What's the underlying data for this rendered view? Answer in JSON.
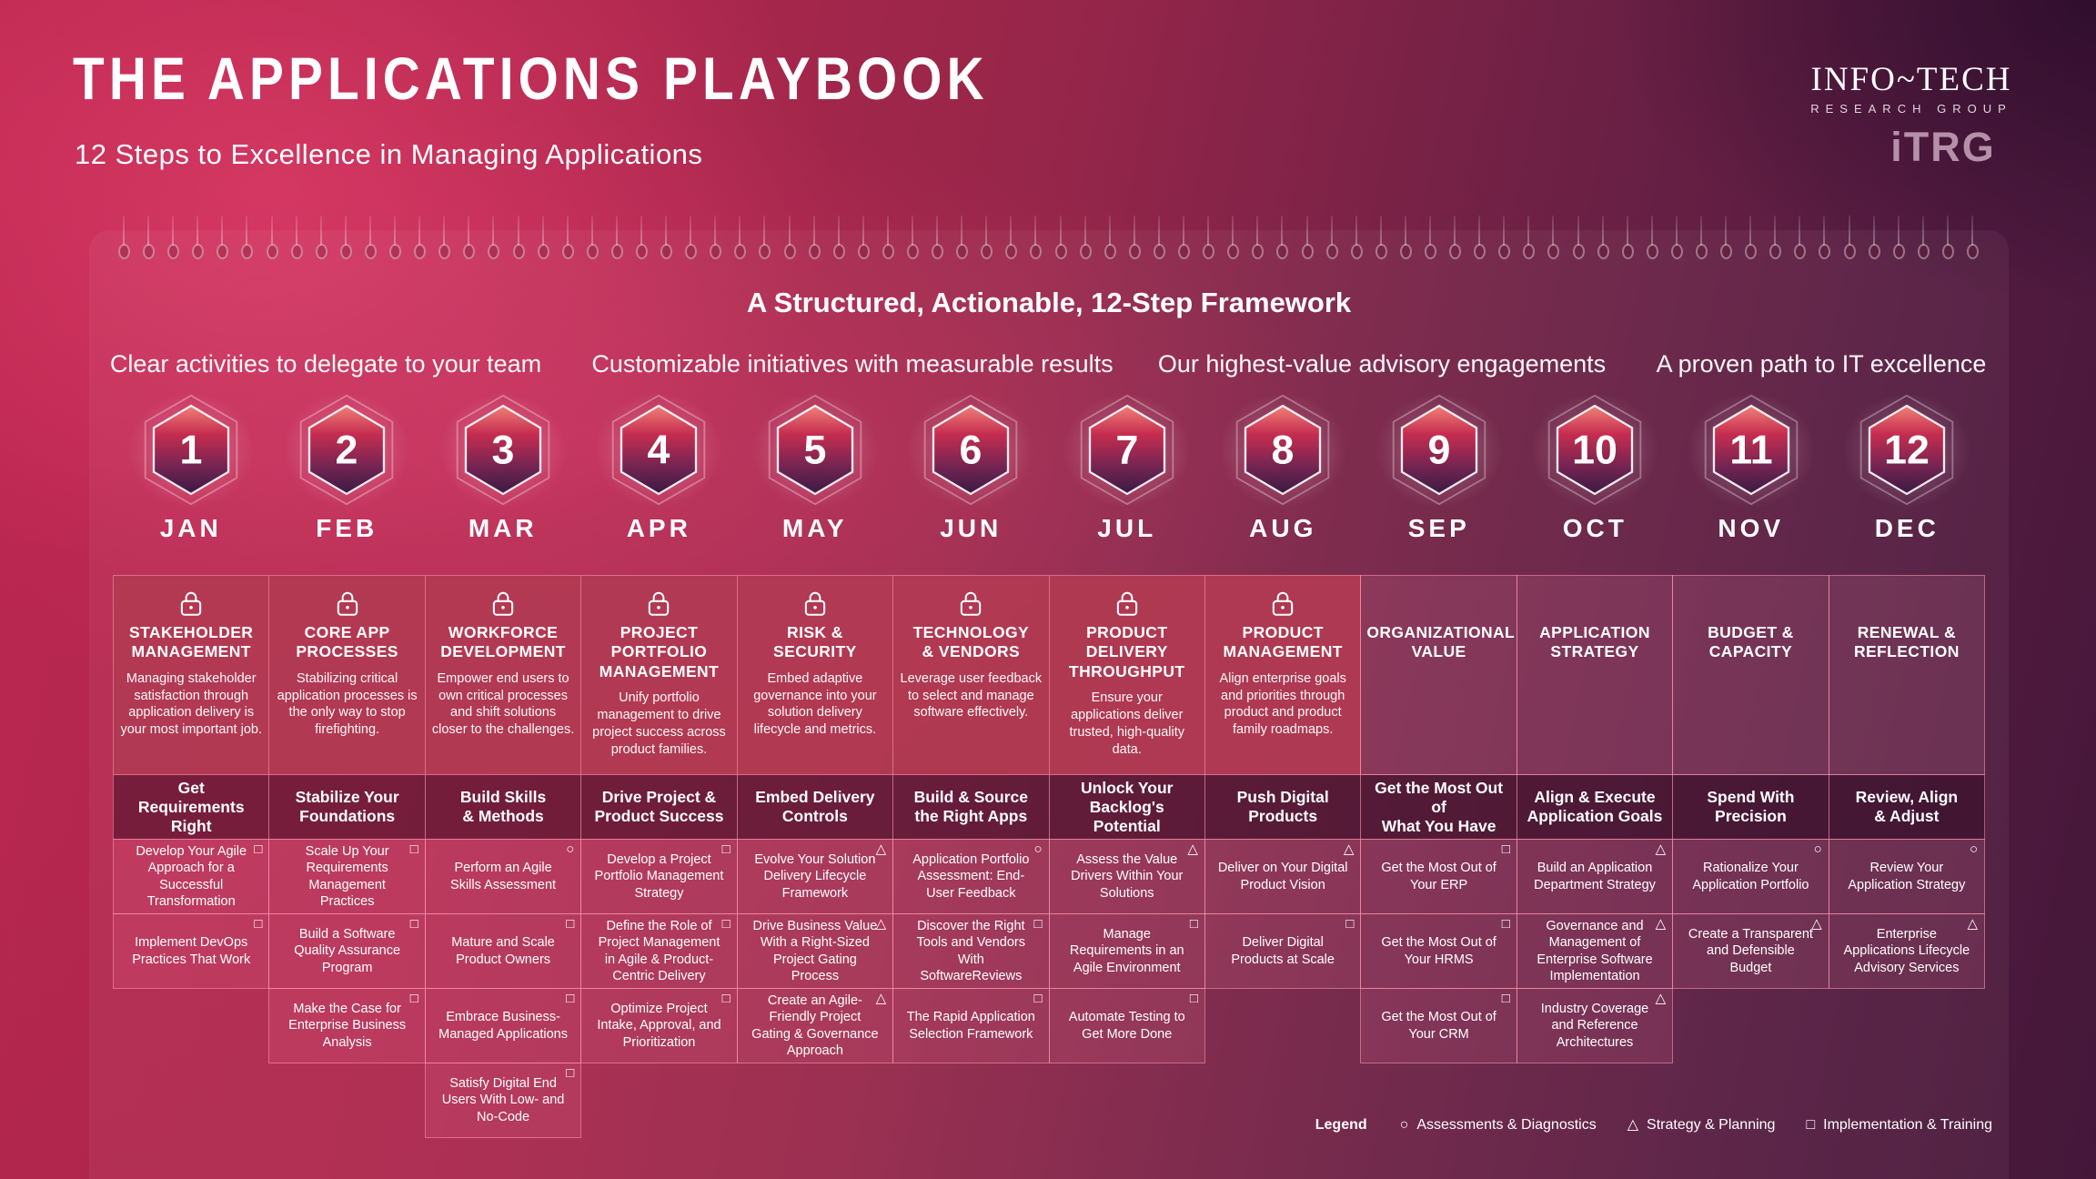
{
  "header": {
    "title": "THE APPLICATIONS PLAYBOOK",
    "subtitle": "12 Steps to Excellence in Managing Applications"
  },
  "logo": {
    "name": "INFO~TECH",
    "sub": "RESEARCH GROUP",
    "acronym": "iTRG"
  },
  "panel": {
    "heading": "A Structured, Actionable, 12-Step Framework",
    "group_headers": [
      "Clear activities to delegate to your team",
      "Customizable initiatives with measurable results",
      "Our highest-value advisory engagements",
      "A proven path to IT excellence"
    ]
  },
  "columns": [
    {
      "num": "1",
      "month": "JAN",
      "locked": true,
      "category": "STAKEHOLDER\nMANAGEMENT",
      "description": "Managing stakeholder satisfaction through application delivery is your most important job.",
      "subtitle": "Get Requirements\nRight",
      "activities": [
        {
          "label": "Develop Your Agile Approach for a Successful Transformation",
          "type": "square"
        },
        {
          "label": "Implement DevOps Practices That Work",
          "type": "square"
        }
      ]
    },
    {
      "num": "2",
      "month": "FEB",
      "locked": true,
      "category": "CORE APP\nPROCESSES",
      "description": "Stabilizing critical application processes is the only way to stop firefighting.",
      "subtitle": "Stabilize Your\nFoundations",
      "activities": [
        {
          "label": "Scale Up Your Requirements Management Practices",
          "type": "square"
        },
        {
          "label": "Build a Software Quality Assurance Program",
          "type": "square"
        },
        {
          "label": "Make the Case for Enterprise Business Analysis",
          "type": "square"
        }
      ]
    },
    {
      "num": "3",
      "month": "MAR",
      "locked": true,
      "category": "WORKFORCE\nDEVELOPMENT",
      "description": "Empower end users to own critical processes and shift solutions closer to the challenges.",
      "subtitle": "Build Skills\n& Methods",
      "activities": [
        {
          "label": "Perform an Agile Skills Assessment",
          "type": "circle"
        },
        {
          "label": "Mature and Scale Product Owners",
          "type": "square"
        },
        {
          "label": "Embrace Business-Managed Applications",
          "type": "square"
        },
        {
          "label": "Satisfy Digital End Users With Low- and No-Code",
          "type": "square"
        }
      ]
    },
    {
      "num": "4",
      "month": "APR",
      "locked": true,
      "category": "PROJECT\nPORTFOLIO\nMANAGEMENT",
      "description": "Unify portfolio management to drive project success across product families.",
      "subtitle": "Drive Project &\nProduct Success",
      "activities": [
        {
          "label": "Develop a Project Portfolio Management Strategy",
          "type": "square"
        },
        {
          "label": "Define the Role of Project Management in Agile & Product-Centric Delivery",
          "type": "square"
        },
        {
          "label": "Optimize Project Intake, Approval, and Prioritization",
          "type": "square"
        }
      ]
    },
    {
      "num": "5",
      "month": "MAY",
      "locked": true,
      "category": "RISK &\nSECURITY",
      "description": "Embed adaptive governance into your solution delivery lifecycle and metrics.",
      "subtitle": "Embed Delivery\nControls",
      "activities": [
        {
          "label": "Evolve Your Solution Delivery Lifecycle Framework",
          "type": "triangle"
        },
        {
          "label": "Drive Business Value With a Right-Sized Project Gating Process",
          "type": "triangle"
        },
        {
          "label": "Create an Agile-Friendly Project Gating & Governance Approach",
          "type": "triangle"
        }
      ]
    },
    {
      "num": "6",
      "month": "JUN",
      "locked": true,
      "category": "TECHNOLOGY\n& VENDORS",
      "description": "Leverage user feedback to select and manage software effectively.",
      "subtitle": "Build & Source\nthe Right Apps",
      "activities": [
        {
          "label": "Application Portfolio Assessment: End-User Feedback",
          "type": "circle"
        },
        {
          "label": "Discover the Right Tools and Vendors With SoftwareReviews",
          "type": "square"
        },
        {
          "label": "The Rapid Application Selection Framework",
          "type": "square"
        }
      ]
    },
    {
      "num": "7",
      "month": "JUL",
      "locked": true,
      "category": "PRODUCT\nDELIVERY\nTHROUGHPUT",
      "description": "Ensure your applications deliver trusted, high-quality data.",
      "subtitle": "Unlock Your\nBacklog's Potential",
      "activities": [
        {
          "label": "Assess the Value Drivers Within Your Solutions",
          "type": "triangle"
        },
        {
          "label": "Manage Requirements in an Agile Environment",
          "type": "square"
        },
        {
          "label": "Automate Testing to Get More Done",
          "type": "square"
        }
      ]
    },
    {
      "num": "8",
      "month": "AUG",
      "locked": true,
      "category": "PRODUCT\nMANAGEMENT",
      "description": "Align enterprise goals and priorities through product and product family roadmaps.",
      "subtitle": "Push Digital Products",
      "activities": [
        {
          "label": "Deliver on Your Digital Product Vision",
          "type": "triangle"
        },
        {
          "label": "Deliver Digital Products at Scale",
          "type": "square"
        }
      ]
    },
    {
      "num": "9",
      "month": "SEP",
      "locked": false,
      "category": "ORGANIZATIONAL\nVALUE",
      "description": "",
      "subtitle": "Get the Most Out of\nWhat You Have",
      "activities": [
        {
          "label": "Get the Most Out of Your ERP",
          "type": "square"
        },
        {
          "label": "Get the Most Out of Your HRMS",
          "type": "square"
        },
        {
          "label": "Get the Most Out of Your CRM",
          "type": "square"
        }
      ]
    },
    {
      "num": "10",
      "month": "OCT",
      "locked": false,
      "category": "APPLICATION\nSTRATEGY",
      "description": "",
      "subtitle": "Align & Execute\nApplication Goals",
      "activities": [
        {
          "label": "Build an Application Department Strategy",
          "type": "triangle"
        },
        {
          "label": "Governance and Management of Enterprise Software Implementation",
          "type": "triangle"
        },
        {
          "label": "Industry Coverage and Reference Architectures",
          "type": "triangle"
        }
      ]
    },
    {
      "num": "11",
      "month": "NOV",
      "locked": false,
      "category": "BUDGET &\nCAPACITY",
      "description": "",
      "subtitle": "Spend With\nPrecision",
      "activities": [
        {
          "label": "Rationalize Your Application Portfolio",
          "type": "circle"
        },
        {
          "label": "Create a Transparent and Defensible Budget",
          "type": "triangle"
        }
      ]
    },
    {
      "num": "12",
      "month": "DEC",
      "locked": false,
      "category": "RENEWAL &\nREFLECTION",
      "description": "",
      "subtitle": "Review, Align\n& Adjust",
      "activities": [
        {
          "label": "Review Your Application Strategy",
          "type": "circle"
        },
        {
          "label": "Enterprise Applications Lifecycle Advisory Services",
          "type": "triangle"
        }
      ]
    }
  ],
  "legend": {
    "label": "Legend",
    "items": [
      {
        "symbol": "circle",
        "label": "Assessments & Diagnostics"
      },
      {
        "symbol": "triangle",
        "label": "Strategy & Planning"
      },
      {
        "symbol": "square",
        "label": "Implementation & Training"
      }
    ]
  },
  "colors": {
    "background_top_left": "#c42a55",
    "background_bottom_right": "#441739",
    "locked_header_cell": "#b23a53",
    "cell_border": "#ff96af",
    "hex_top": "#f08077",
    "hex_bottom": "#3a1a42",
    "logo_acronym": "#b68fa9"
  }
}
